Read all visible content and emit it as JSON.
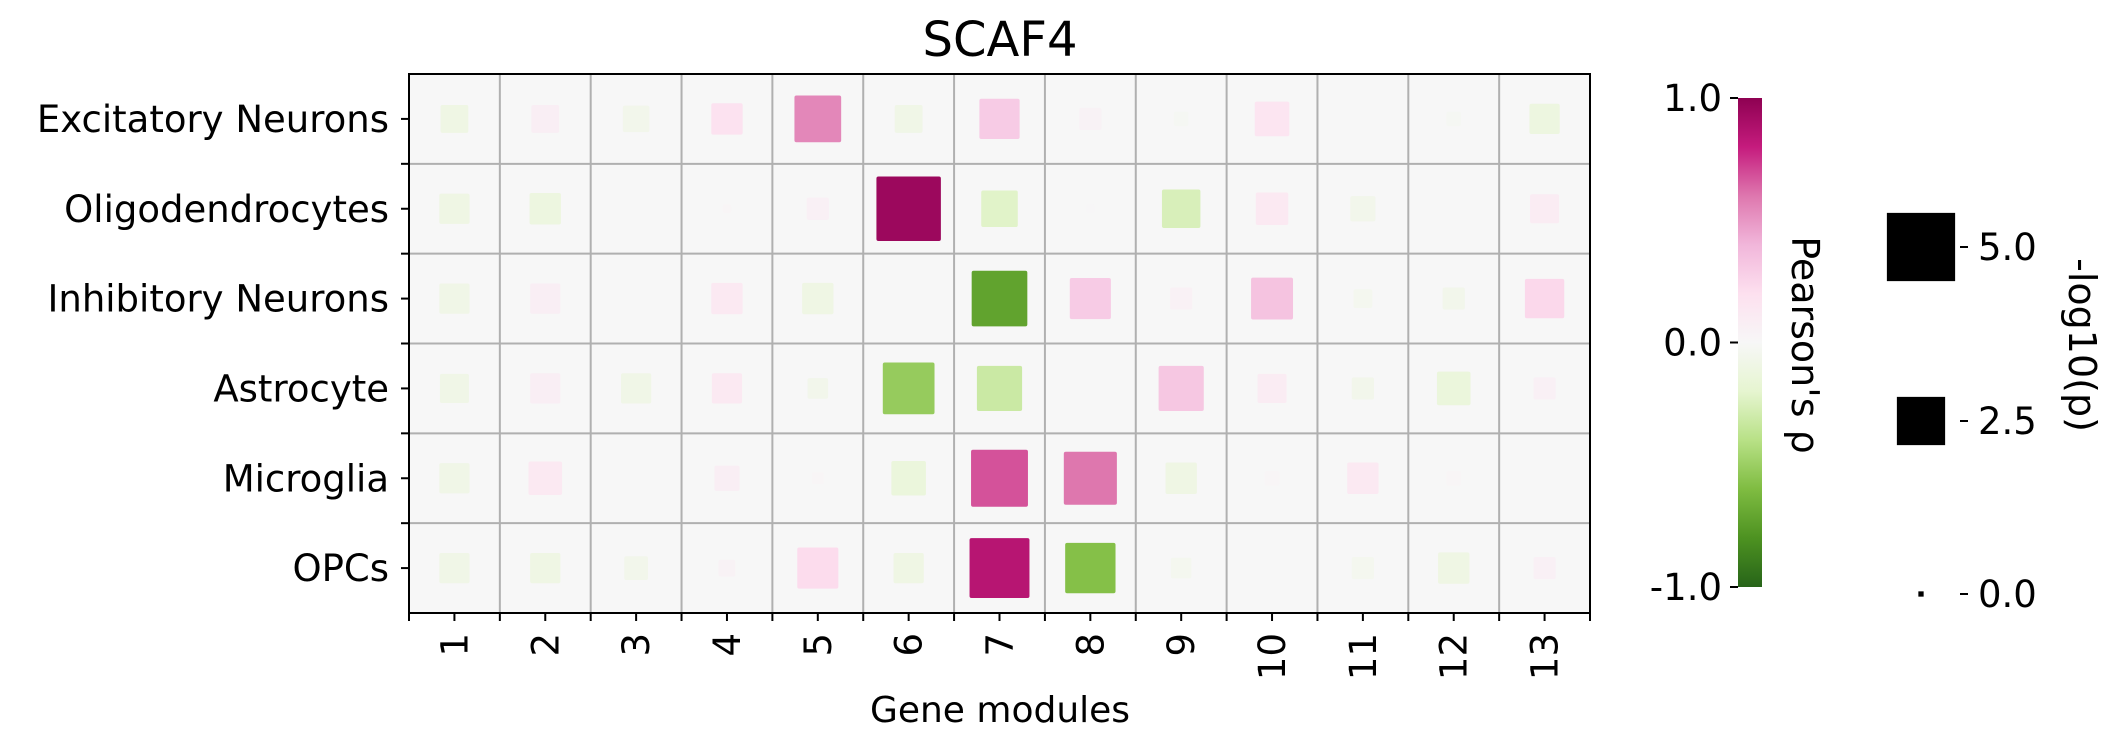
{
  "chart_data": {
    "type": "heatmap",
    "title": "SCAF4",
    "xlabel": "Gene modules",
    "ylabel": "",
    "categories": [
      "1",
      "2",
      "3",
      "4",
      "5",
      "6",
      "7",
      "8",
      "9",
      "10",
      "11",
      "12",
      "13"
    ],
    "rows": [
      "Excitatory Neurons",
      "Oligodendrocytes",
      "Inhibitory Neurons",
      "Astrocyte",
      "Microglia",
      "OPCs"
    ],
    "rho": [
      [
        -0.1,
        0.08,
        -0.06,
        0.18,
        0.55,
        -0.08,
        0.3,
        0.04,
        -0.02,
        0.16,
        0.0,
        -0.02,
        -0.12
      ],
      [
        -0.1,
        -0.12,
        0.0,
        0.02,
        0.06,
        0.95,
        -0.22,
        0.01,
        -0.26,
        0.12,
        -0.06,
        0.0,
        0.1
      ],
      [
        -0.08,
        0.08,
        0.0,
        0.12,
        -0.1,
        0.0,
        -0.72,
        0.3,
        0.05,
        0.34,
        -0.04,
        -0.06,
        0.24
      ],
      [
        -0.08,
        0.08,
        -0.08,
        0.12,
        -0.06,
        -0.52,
        -0.32,
        0.0,
        0.32,
        0.1,
        -0.06,
        -0.14,
        0.06
      ],
      [
        -0.08,
        0.12,
        0.0,
        0.08,
        0.02,
        -0.14,
        0.68,
        0.6,
        -0.1,
        0.02,
        0.12,
        0.02,
        0.0
      ],
      [
        -0.08,
        -0.1,
        -0.06,
        0.04,
        0.22,
        -0.1,
        0.85,
        -0.58,
        -0.04,
        0.0,
        -0.04,
        -0.1,
        0.06
      ]
    ],
    "neg_log10_p": [
      [
        1.1,
        1.1,
        1.0,
        1.4,
        3.1,
        1.1,
        2.3,
        0.7,
        0.3,
        1.7,
        0.0,
        0.3,
        1.3
      ],
      [
        1.3,
        1.4,
        0.0,
        0.1,
        0.7,
        5.9,
        1.9,
        0.1,
        2.1,
        1.5,
        0.9,
        0.1,
        1.2
      ],
      [
        1.3,
        1.3,
        0.0,
        1.4,
        1.4,
        0.0,
        4.4,
        2.4,
        0.7,
        2.5,
        0.5,
        0.7,
        2.2
      ],
      [
        1.2,
        1.3,
        1.3,
        1.3,
        0.6,
        3.8,
        2.9,
        0.0,
        2.9,
        1.2,
        0.7,
        1.6,
        0.7
      ],
      [
        1.3,
        1.6,
        0.0,
        0.9,
        0.2,
        1.7,
        4.6,
        4.0,
        1.4,
        0.3,
        1.4,
        0.3,
        0.0
      ],
      [
        1.3,
        1.3,
        0.8,
        0.4,
        2.4,
        1.3,
        5.1,
        3.6,
        0.6,
        0.1,
        0.7,
        1.4,
        0.7
      ]
    ],
    "colorbar": {
      "label": "Pearson's ρ",
      "range": [
        -1.0,
        1.0
      ],
      "ticks": [
        "1.0",
        "0.0",
        "-1.0"
      ],
      "colormap": [
        "#276419",
        "#4d9221",
        "#7fbc41",
        "#b8e186",
        "#e6f5d0",
        "#f7f7f7",
        "#fde0ef",
        "#f1b6da",
        "#de77ae",
        "#c51b7d",
        "#8e0152"
      ]
    },
    "size_legend": {
      "label": "-log10(p)",
      "ticks": [
        "5.0",
        "2.5",
        "0.0"
      ],
      "values": [
        5.0,
        2.5,
        0.0
      ]
    },
    "grid": true,
    "background": "#f7f7f7",
    "gridline_color": "#b0b0b0"
  }
}
